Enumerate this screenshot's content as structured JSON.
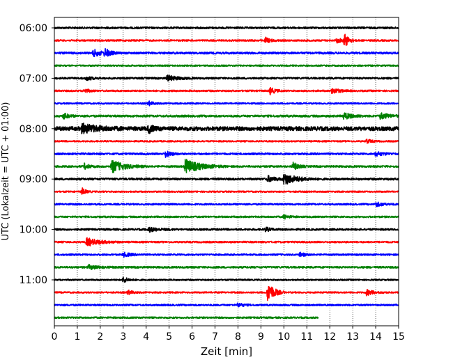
{
  "chart_data": {
    "type": "line",
    "title": "",
    "xlabel": "Zeit  [min]",
    "ylabel": "UTC (Lokalzeit = UTC + 01:00)",
    "xlim": [
      0,
      15
    ],
    "x_ticks": [
      "0",
      "1",
      "2",
      "3",
      "4",
      "5",
      "6",
      "7",
      "8",
      "9",
      "10",
      "11",
      "12",
      "13",
      "14",
      "15"
    ],
    "y_tick_labels": [
      "06:00",
      "07:00",
      "08:00",
      "09:00",
      "10:00",
      "11:00"
    ],
    "grid": "vertical dotted lines at each minute",
    "trace_minutes": 15,
    "trace_colors": [
      "#000000",
      "#ff0000",
      "#0000ff",
      "#008000"
    ],
    "traces": [
      {
        "start": "06:00",
        "color": "#000000",
        "noise": 1.0,
        "end_min": 15,
        "events": []
      },
      {
        "start": "06:15",
        "color": "#ff0000",
        "noise": 0.9,
        "end_min": 15,
        "events": [
          {
            "t": 9.2,
            "amp": 4,
            "dur": 0.2
          },
          {
            "t": 12.3,
            "amp": 3,
            "dur": 0.3
          },
          {
            "t": 12.65,
            "amp": 10,
            "dur": 0.15
          }
        ]
      },
      {
        "start": "06:30",
        "color": "#0000ff",
        "noise": 1.1,
        "end_min": 15,
        "events": [
          {
            "t": 1.7,
            "amp": 5,
            "dur": 0.3
          },
          {
            "t": 2.2,
            "amp": 6,
            "dur": 0.2
          }
        ]
      },
      {
        "start": "06:45",
        "color": "#008000",
        "noise": 0.8,
        "end_min": 15,
        "events": []
      },
      {
        "start": "07:00",
        "color": "#000000",
        "noise": 1.0,
        "end_min": 15,
        "events": [
          {
            "t": 1.4,
            "amp": 3,
            "dur": 0.2
          },
          {
            "t": 4.9,
            "amp": 4,
            "dur": 0.4
          }
        ]
      },
      {
        "start": "07:15",
        "color": "#ff0000",
        "noise": 0.9,
        "end_min": 15,
        "events": [
          {
            "t": 1.3,
            "amp": 3,
            "dur": 0.2
          },
          {
            "t": 9.4,
            "amp": 5,
            "dur": 0.2
          },
          {
            "t": 12.1,
            "amp": 4,
            "dur": 0.3
          }
        ]
      },
      {
        "start": "07:30",
        "color": "#0000ff",
        "noise": 0.8,
        "end_min": 15,
        "events": [
          {
            "t": 4.1,
            "amp": 3,
            "dur": 0.2
          }
        ]
      },
      {
        "start": "07:45",
        "color": "#008000",
        "noise": 1.1,
        "end_min": 15,
        "events": [
          {
            "t": 0.4,
            "amp": 4,
            "dur": 0.2
          },
          {
            "t": 12.6,
            "amp": 5,
            "dur": 0.3
          },
          {
            "t": 14.2,
            "amp": 4,
            "dur": 0.4
          }
        ]
      },
      {
        "start": "08:00",
        "color": "#000000",
        "noise": 2.2,
        "end_min": 15,
        "events": [
          {
            "t": 1.2,
            "amp": 6,
            "dur": 0.6
          },
          {
            "t": 4.1,
            "amp": 5,
            "dur": 0.2
          }
        ]
      },
      {
        "start": "08:15",
        "color": "#ff0000",
        "noise": 0.8,
        "end_min": 15,
        "events": [
          {
            "t": 13.6,
            "amp": 3,
            "dur": 0.2
          }
        ]
      },
      {
        "start": "08:30",
        "color": "#0000ff",
        "noise": 1.0,
        "end_min": 15,
        "events": [
          {
            "t": 4.85,
            "amp": 5,
            "dur": 0.2
          },
          {
            "t": 14.0,
            "amp": 3,
            "dur": 0.3
          }
        ]
      },
      {
        "start": "08:45",
        "color": "#008000",
        "noise": 1.0,
        "end_min": 15,
        "events": [
          {
            "t": 1.3,
            "amp": 4,
            "dur": 0.2
          },
          {
            "t": 2.5,
            "amp": 9,
            "dur": 0.5
          },
          {
            "t": 5.7,
            "amp": 10,
            "dur": 0.6
          },
          {
            "t": 10.4,
            "amp": 6,
            "dur": 0.2
          }
        ]
      },
      {
        "start": "09:00",
        "color": "#000000",
        "noise": 1.1,
        "end_min": 15,
        "events": [
          {
            "t": 9.3,
            "amp": 4,
            "dur": 0.3
          },
          {
            "t": 10.0,
            "amp": 8,
            "dur": 0.5
          }
        ]
      },
      {
        "start": "09:15",
        "color": "#ff0000",
        "noise": 0.8,
        "end_min": 15,
        "events": [
          {
            "t": 1.2,
            "amp": 5,
            "dur": 0.15
          }
        ]
      },
      {
        "start": "09:30",
        "color": "#0000ff",
        "noise": 0.9,
        "end_min": 15,
        "events": [
          {
            "t": 14.0,
            "amp": 3,
            "dur": 0.3
          }
        ]
      },
      {
        "start": "09:45",
        "color": "#008000",
        "noise": 0.9,
        "end_min": 15,
        "events": [
          {
            "t": 10.0,
            "amp": 3,
            "dur": 0.2
          }
        ]
      },
      {
        "start": "10:00",
        "color": "#000000",
        "noise": 1.0,
        "end_min": 15,
        "events": [
          {
            "t": 4.1,
            "amp": 3,
            "dur": 0.4
          },
          {
            "t": 9.2,
            "amp": 3,
            "dur": 0.2
          }
        ]
      },
      {
        "start": "10:15",
        "color": "#ff0000",
        "noise": 0.9,
        "end_min": 15,
        "events": [
          {
            "t": 1.4,
            "amp": 6,
            "dur": 0.5
          }
        ]
      },
      {
        "start": "10:30",
        "color": "#0000ff",
        "noise": 0.9,
        "end_min": 15,
        "events": [
          {
            "t": 3.0,
            "amp": 3,
            "dur": 0.3
          },
          {
            "t": 10.7,
            "amp": 3,
            "dur": 0.2
          }
        ]
      },
      {
        "start": "10:45",
        "color": "#008000",
        "noise": 1.0,
        "end_min": 15,
        "events": [
          {
            "t": 1.5,
            "amp": 3,
            "dur": 0.4
          }
        ]
      },
      {
        "start": "11:00",
        "color": "#000000",
        "noise": 0.8,
        "end_min": 15,
        "events": [
          {
            "t": 3.0,
            "amp": 4,
            "dur": 0.2
          }
        ]
      },
      {
        "start": "11:15",
        "color": "#ff0000",
        "noise": 0.8,
        "end_min": 15,
        "events": [
          {
            "t": 3.2,
            "amp": 3,
            "dur": 0.2
          },
          {
            "t": 9.3,
            "amp": 16,
            "dur": 0.25
          },
          {
            "t": 13.6,
            "amp": 4,
            "dur": 0.3
          }
        ]
      },
      {
        "start": "11:30",
        "color": "#0000ff",
        "noise": 0.9,
        "end_min": 15,
        "events": [
          {
            "t": 8.0,
            "amp": 3,
            "dur": 0.2
          }
        ]
      },
      {
        "start": "11:45",
        "color": "#008000",
        "noise": 0.9,
        "end_min": 11.5,
        "events": []
      }
    ]
  }
}
